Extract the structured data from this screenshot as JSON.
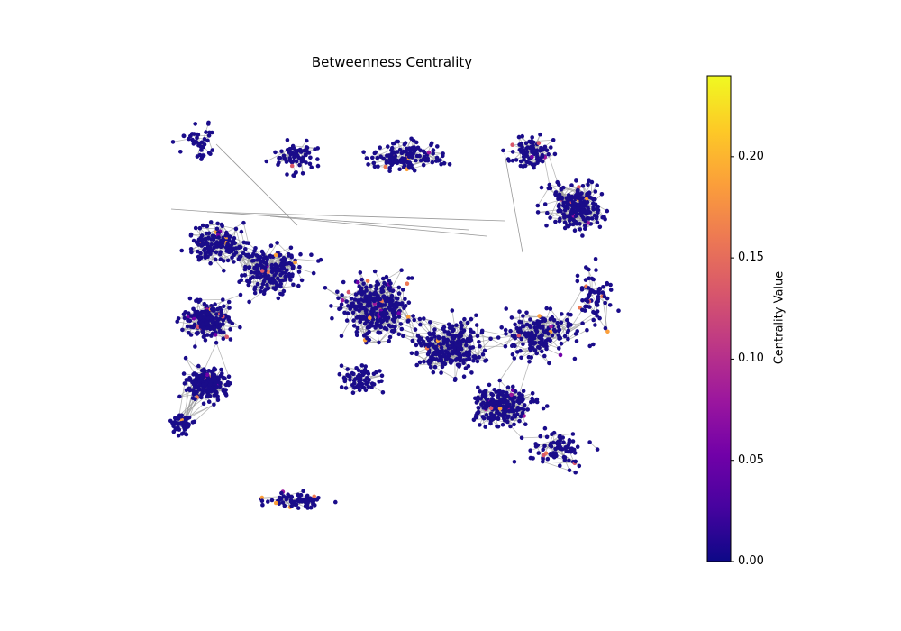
{
  "title": "Betweenness Centrality",
  "colorbar": {
    "label": "Centrality Value",
    "ticks": [
      "0.00",
      "0.05",
      "0.10",
      "0.15",
      "0.20"
    ],
    "tick_values": [
      0.0,
      0.05,
      0.1,
      0.15,
      0.2
    ],
    "range": [
      0.0,
      0.24
    ],
    "colormap": "plasma",
    "colors": [
      "#0d0887",
      "#46039f",
      "#7201a8",
      "#9c179e",
      "#bd3786",
      "#d8576b",
      "#ed7953",
      "#fb9f3a",
      "#fdca26",
      "#f0f921"
    ]
  },
  "graph": {
    "node_color_default": "#1a0c8a",
    "edge_color": "#9a9a9a",
    "highlight_colors": [
      "#9c179e",
      "#d8576b",
      "#ed7953",
      "#fb9f3a",
      "#7201a8"
    ]
  }
}
